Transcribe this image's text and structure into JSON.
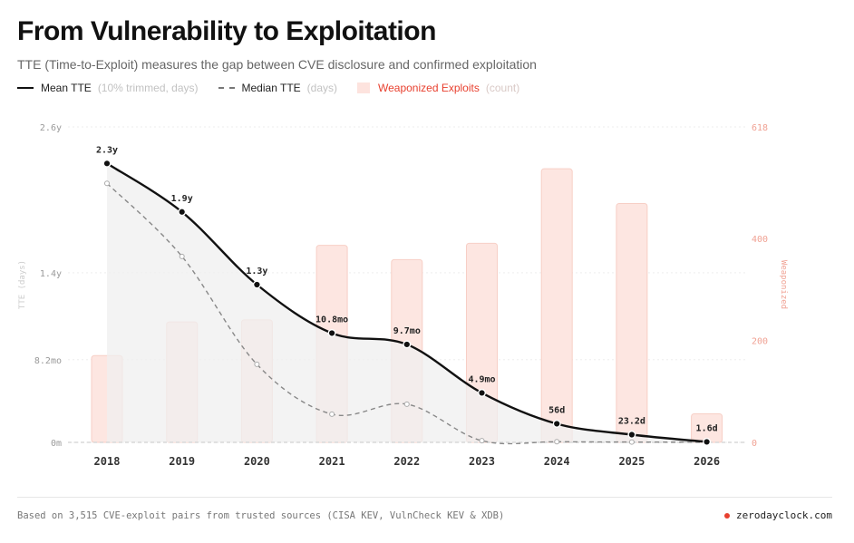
{
  "title": "From Vulnerability to Exploitation",
  "subtitle": "TTE (Time-to-Exploit) measures the gap between CVE disclosure and confirmed exploitation",
  "legend": {
    "mean": {
      "label": "Mean TTE",
      "unit": "(10% trimmed, days)"
    },
    "median": {
      "label": "Median TTE",
      "unit": "(days)"
    },
    "exploits": {
      "label": "Weaponized Exploits",
      "unit": "(count)"
    }
  },
  "colors": {
    "mean": "#111111",
    "median": "#888888",
    "bar_fill": "#fde6e1",
    "bar_stroke": "#f7cfc6",
    "area": "#efefef",
    "right_axis": "#f0a294",
    "brand_dot": "#e8402f"
  },
  "footer": {
    "note": "Based on 3,515 CVE-exploit pairs from trusted sources (CISA KEV, VulnCheck KEV & XDB)",
    "brand": "zerodayclock.com"
  },
  "chart_data": {
    "type": "line",
    "categories": [
      "2018",
      "2019",
      "2020",
      "2021",
      "2022",
      "2023",
      "2024",
      "2025",
      "2026"
    ],
    "y_left": {
      "label": "TTE (days)",
      "ticks": [
        "0m",
        "8.2mo",
        "1.4y",
        "2.6y"
      ],
      "tick_values": [
        0,
        249,
        511,
        950
      ],
      "range": [
        0,
        950
      ]
    },
    "y_right": {
      "label": "Weaponized",
      "ticks": [
        "0",
        "200",
        "400",
        "618"
      ],
      "tick_values": [
        0,
        200,
        400,
        618
      ],
      "range": [
        0,
        618
      ]
    },
    "grid": true,
    "legend_position": "top-left",
    "series": [
      {
        "name": "Mean TTE",
        "values": [
          840,
          694,
          475,
          329,
          295,
          149,
          56,
          23.2,
          1.6
        ],
        "labels": [
          "2.3y",
          "1.9y",
          "1.3y",
          "10.8mo",
          "9.7mo",
          "4.9mo",
          "56d",
          "23.2d",
          "1.6d"
        ]
      },
      {
        "name": "Median TTE",
        "values": [
          780,
          560,
          235,
          85,
          115,
          5,
          2,
          1,
          0.5
        ]
      },
      {
        "name": "Weaponized Exploits",
        "values": [
          170,
          236,
          240,
          386,
          358,
          390,
          536,
          468,
          56
        ]
      }
    ]
  }
}
